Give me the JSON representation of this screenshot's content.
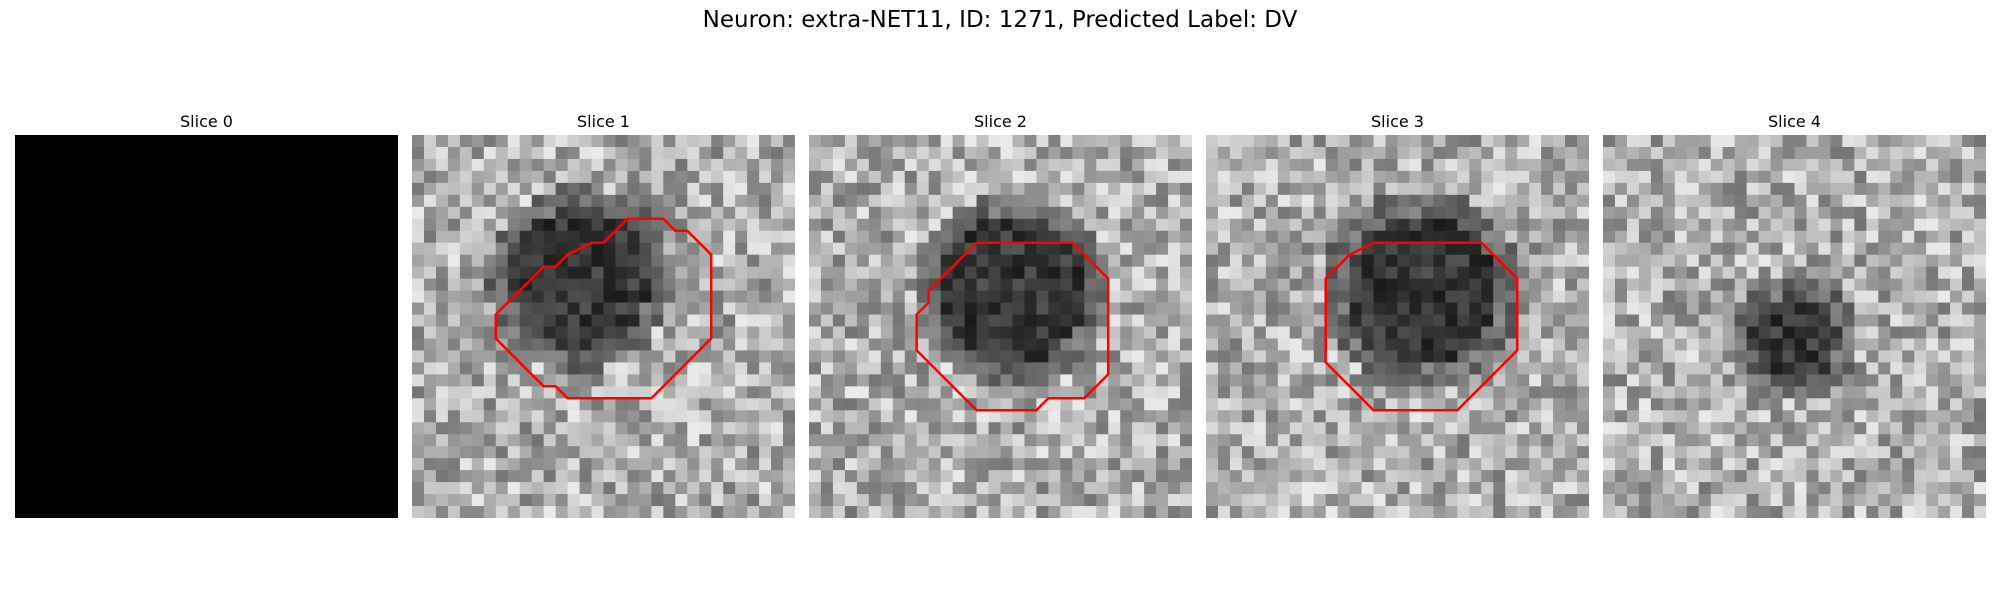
{
  "figure": {
    "title": "Neuron: extra-NET11, ID: 1271, Predicted Label: DV"
  },
  "slices": [
    {
      "label": "Slice 0",
      "has_contour": false,
      "blank": true
    },
    {
      "label": "Slice 1",
      "has_contour": true,
      "blank": false
    },
    {
      "label": "Slice 2",
      "has_contour": true,
      "blank": false
    },
    {
      "label": "Slice 3",
      "has_contour": true,
      "blank": false
    },
    {
      "label": "Slice 4",
      "has_contour": false,
      "blank": false
    }
  ],
  "colors": {
    "contour": "#ff0000",
    "background": "#ffffff"
  },
  "colormap": "grayscale"
}
